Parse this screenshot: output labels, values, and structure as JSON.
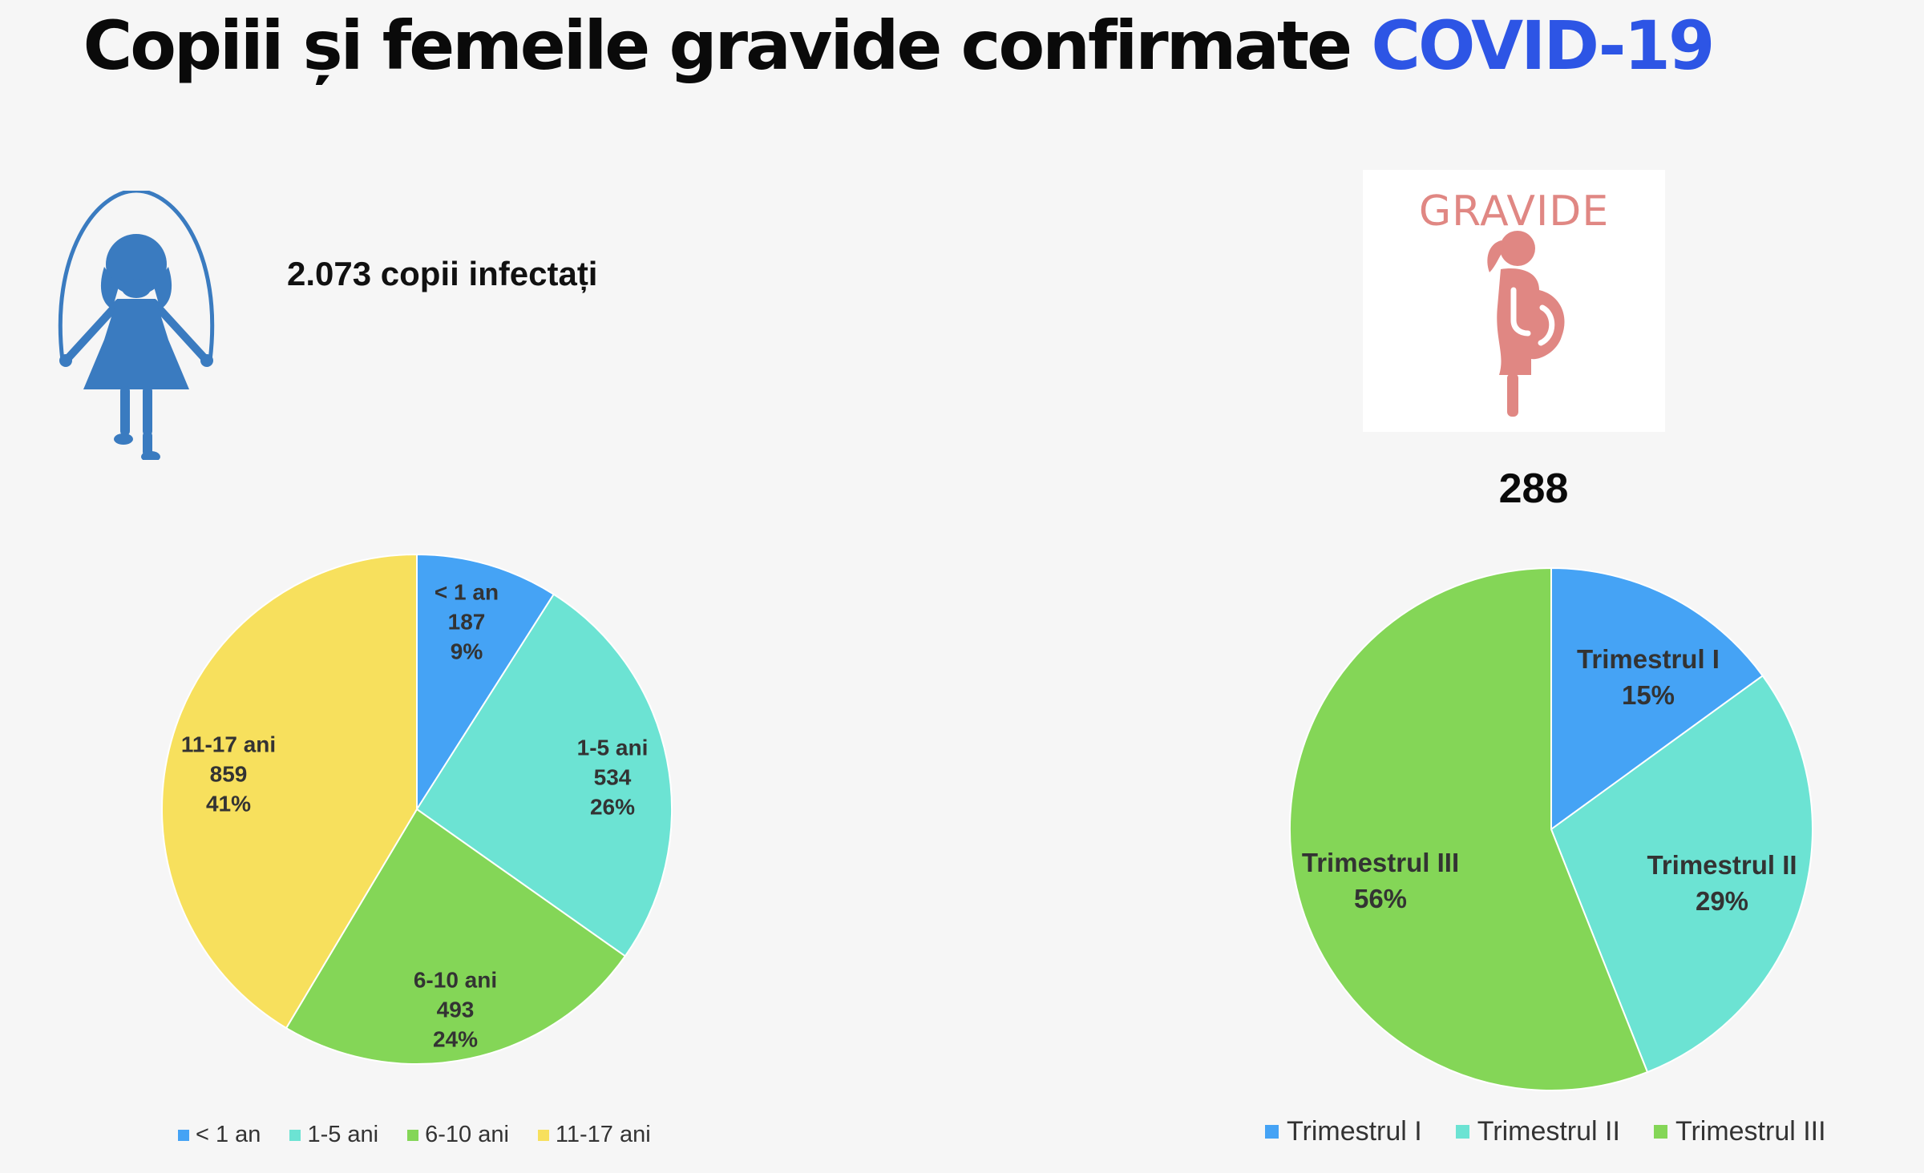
{
  "title": {
    "main": "Copiii și femeile gravide confirmate",
    "accent": "COVID-19"
  },
  "colors": {
    "title_accent": "#2d55e5",
    "girl_icon": "#3a7bc0",
    "gravide": "#e08783"
  },
  "icons": {
    "children": "girl-jump-rope-icon",
    "pregnant": "pregnant-woman-icon"
  },
  "children": {
    "total_label": "2.073 copii infectați"
  },
  "pregnant": {
    "badge_label": "GRAVIDE",
    "total": "288"
  },
  "chart_data": [
    {
      "type": "pie",
      "categories": [
        "< 1 an",
        "1-5 ani",
        "6-10 ani",
        "11-17 ani"
      ],
      "values": [
        187,
        534,
        493,
        859
      ],
      "percent_labels": [
        "9%",
        "26%",
        "24%",
        "41%"
      ],
      "colors": [
        "#45a3f5",
        "#6ce3d3",
        "#84d657",
        "#f7e05d"
      ],
      "legend": [
        "< 1 an",
        "1-5 ani",
        "6-10 ani",
        "11-17 ani"
      ],
      "legend_position": "bottom"
    },
    {
      "type": "pie",
      "categories": [
        "Trimestrul I",
        "Trimestrul II",
        "Trimestrul III"
      ],
      "values": [
        15,
        29,
        56
      ],
      "percent_labels": [
        "15%",
        "29%",
        "56%"
      ],
      "colors": [
        "#45a3f5",
        "#6ce3d3",
        "#84d657"
      ],
      "legend": [
        "Trimestrul I",
        "Trimestrul II",
        "Trimestrul III"
      ],
      "legend_position": "bottom"
    }
  ]
}
